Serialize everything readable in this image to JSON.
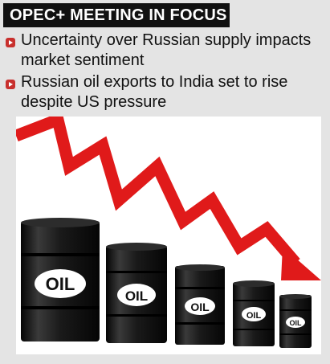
{
  "header": {
    "title": "OPEC+ MEETING IN FOCUS"
  },
  "bullets": [
    {
      "icon": "red-bullet-icon",
      "text": "Uncertainty over Russian supply impacts market sentiment"
    },
    {
      "icon": "red-bullet-icon",
      "text": "Russian oil exports to India set to rise despite US pressure"
    }
  ],
  "illustration": {
    "barrel_label": "OIL",
    "arrow_color": "#e01a1a",
    "barrel_color": "#151515",
    "bullet_color": "#c8302d"
  }
}
